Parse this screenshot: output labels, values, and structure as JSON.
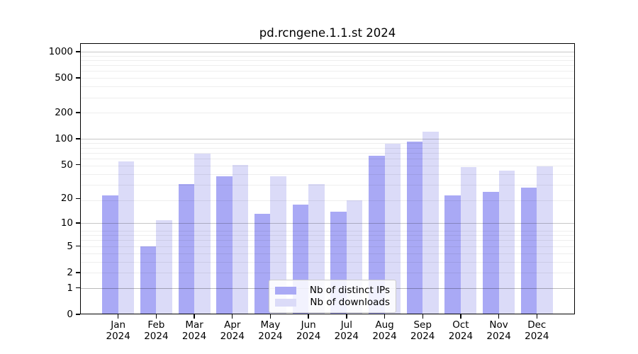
{
  "title": "pd.rcngene.1.1.st 2024",
  "chart_data": {
    "type": "bar",
    "title": "pd.rcngene.1.1.st 2024",
    "categories": [
      "Jan",
      "Feb",
      "Mar",
      "Apr",
      "May",
      "Jun",
      "Jul",
      "Aug",
      "Sep",
      "Oct",
      "Nov",
      "Dec"
    ],
    "x_tick_second_line": "2024",
    "series": [
      {
        "name": "Nb of distinct IPs",
        "color": "#a9a9f5",
        "values": [
          22,
          5,
          30,
          37,
          13,
          17,
          14,
          64,
          93,
          22,
          24,
          27
        ]
      },
      {
        "name": "Nb of downloads",
        "color": "#dbdbf8",
        "values": [
          55,
          11,
          67,
          50,
          37,
          30,
          19,
          88,
          120,
          47,
          43,
          48
        ]
      }
    ],
    "y_ticks": [
      0,
      1,
      2,
      5,
      10,
      20,
      50,
      100,
      200,
      500,
      1000
    ],
    "ylim": [
      0,
      1100
    ],
    "y_scale": "log10(1+value)",
    "xlabel": "",
    "ylabel": "",
    "grid": "horizontal, log minor (light) + decade major (gray), drawn over bars",
    "legend_position": "inside bottom-center"
  },
  "legend": {
    "items": [
      {
        "label": "Nb of distinct IPs",
        "color": "#a9a9f5"
      },
      {
        "label": "Nb of downloads",
        "color": "#dbdbf8"
      }
    ]
  },
  "colors": {
    "distinct_ips": "#a9a9f5",
    "downloads": "#dbdbf8",
    "grid_major": "#c7c7c7",
    "grid_minor": "#efefef",
    "spine": "#000000",
    "background": "#ffffff"
  }
}
